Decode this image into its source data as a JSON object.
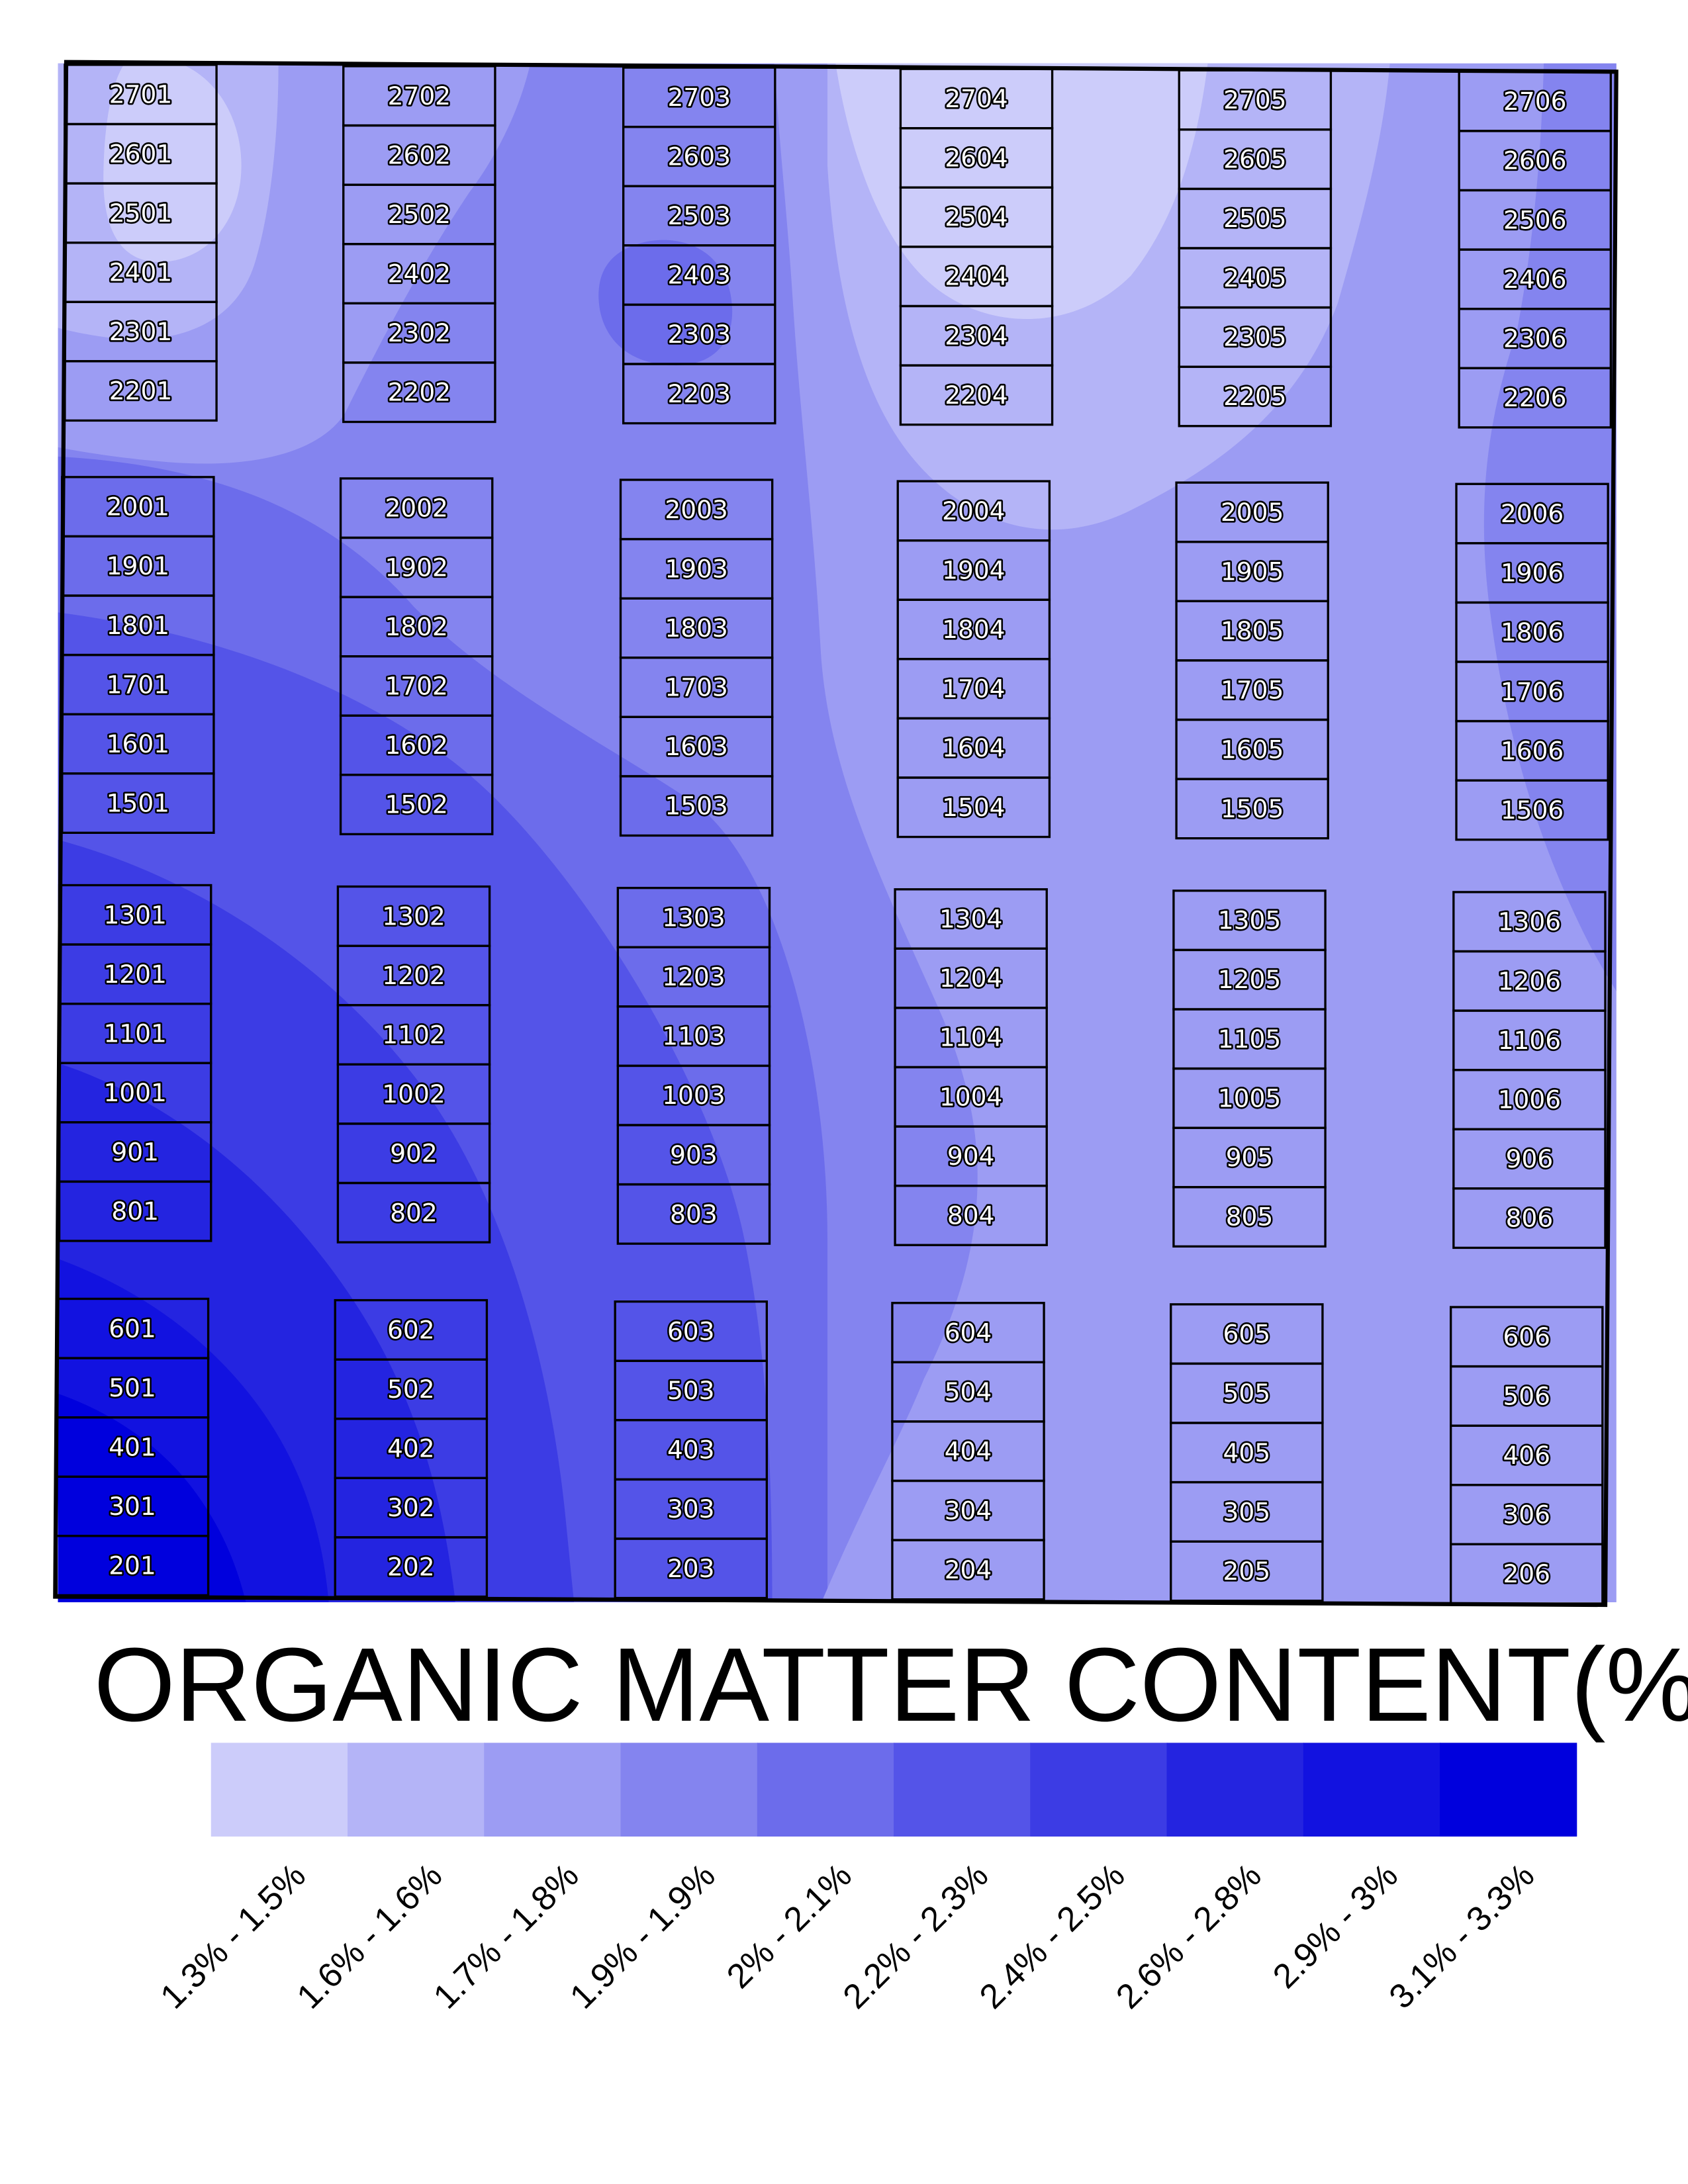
{
  "legend": {
    "title": "ORGANIC MATTER CONTENT(%)",
    "classes": [
      {
        "label": "1.3% - 1.5%",
        "color": "#ccccfa"
      },
      {
        "label": "1.6% - 1.6%",
        "color": "#b4b4f7"
      },
      {
        "label": "1.7% - 1.8%",
        "color": "#9c9cf3"
      },
      {
        "label": "1.9% - 1.9%",
        "color": "#8484ef"
      },
      {
        "label": "2% - 2.1%",
        "color": "#6c6ceb"
      },
      {
        "label": "2.2% - 2.3%",
        "color": "#5454e8"
      },
      {
        "label": "2.4% - 2.5%",
        "color": "#3c3ce4"
      },
      {
        "label": "2.6% - 2.8%",
        "color": "#2424e0"
      },
      {
        "label": "2.9% - 3%",
        "color": "#1212e0"
      },
      {
        "label": "3.1% - 3.3%",
        "color": "#0000dd"
      }
    ]
  },
  "plot_blocks": [
    [
      "2701",
      "2601",
      "2501",
      "2401",
      "2301",
      "2201"
    ],
    [
      "2702",
      "2602",
      "2502",
      "2402",
      "2302",
      "2202"
    ],
    [
      "2703",
      "2603",
      "2503",
      "2403",
      "2303",
      "2203"
    ],
    [
      "2704",
      "2604",
      "2504",
      "2404",
      "2304",
      "2204"
    ],
    [
      "2705",
      "2605",
      "2505",
      "2405",
      "2305",
      "2205"
    ],
    [
      "2706",
      "2606",
      "2506",
      "2406",
      "2306",
      "2206"
    ],
    [
      "2001",
      "1901",
      "1801",
      "1701",
      "1601",
      "1501"
    ],
    [
      "2002",
      "1902",
      "1802",
      "1702",
      "1602",
      "1502"
    ],
    [
      "2003",
      "1903",
      "1803",
      "1703",
      "1603",
      "1503"
    ],
    [
      "2004",
      "1904",
      "1804",
      "1704",
      "1604",
      "1504"
    ],
    [
      "2005",
      "1905",
      "1805",
      "1705",
      "1605",
      "1505"
    ],
    [
      "2006",
      "1906",
      "1806",
      "1706",
      "1606",
      "1506"
    ],
    [
      "1301",
      "1201",
      "1101",
      "1001",
      "901",
      "801"
    ],
    [
      "1302",
      "1202",
      "1102",
      "1002",
      "902",
      "802"
    ],
    [
      "1303",
      "1203",
      "1103",
      "1003",
      "903",
      "803"
    ],
    [
      "1304",
      "1204",
      "1104",
      "1004",
      "904",
      "804"
    ],
    [
      "1305",
      "1205",
      "1105",
      "1005",
      "905",
      "805"
    ],
    [
      "1306",
      "1206",
      "1106",
      "1006",
      "906",
      "806"
    ],
    [
      "601",
      "501",
      "401",
      "301",
      "201"
    ],
    [
      "602",
      "502",
      "402",
      "302",
      "202"
    ],
    [
      "603",
      "503",
      "403",
      "303",
      "203"
    ],
    [
      "604",
      "504",
      "404",
      "304",
      "204"
    ],
    [
      "605",
      "505",
      "405",
      "305",
      "205"
    ],
    [
      "606",
      "506",
      "406",
      "306",
      "206"
    ]
  ]
}
